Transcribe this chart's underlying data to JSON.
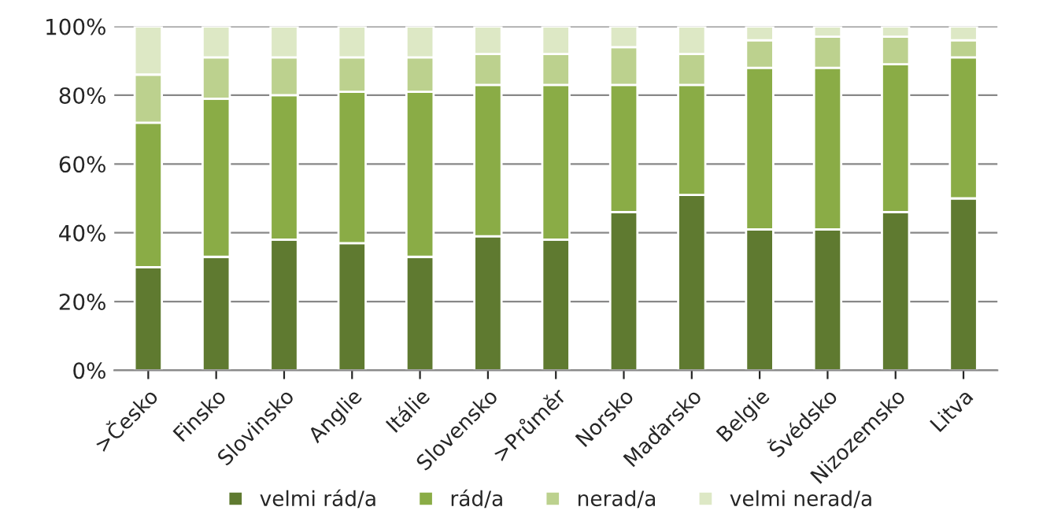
{
  "chart_data": {
    "type": "bar",
    "stacked": true,
    "categories": [
      ">Česko",
      "Finsko",
      "Slovinsko",
      "Anglie",
      "Itálie",
      "Slovensko",
      ">Průměr",
      "Norsko",
      "Maďarsko",
      "Belgie",
      "Švédsko",
      "Nizozemsko",
      "Litva"
    ],
    "series": [
      {
        "name": "velmi rád/a",
        "color": "#5f7a30",
        "values": [
          30,
          33,
          38,
          37,
          33,
          39,
          38,
          46,
          51,
          41,
          41,
          46,
          50
        ]
      },
      {
        "name": "rád/a",
        "color": "#8aac46",
        "values": [
          42,
          46,
          42,
          44,
          48,
          44,
          45,
          37,
          32,
          47,
          47,
          43,
          41
        ]
      },
      {
        "name": "nerad/a",
        "color": "#bcd18e",
        "values": [
          14,
          12,
          11,
          10,
          10,
          9,
          9,
          11,
          9,
          8,
          9,
          8,
          5
        ]
      },
      {
        "name": "velmi nerad/a",
        "color": "#dde8c5",
        "values": [
          14,
          9,
          9,
          9,
          9,
          8,
          8,
          6,
          8,
          4,
          3,
          3,
          4
        ]
      }
    ],
    "ylim": [
      0,
      100
    ],
    "yticks": [
      {
        "value": 0,
        "label": "0%"
      },
      {
        "value": 20,
        "label": "20%"
      },
      {
        "value": 40,
        "label": "40%"
      },
      {
        "value": 60,
        "label": "60%"
      },
      {
        "value": 80,
        "label": "80%"
      },
      {
        "value": 100,
        "label": "100%"
      }
    ],
    "grid": "y",
    "legend": "bottom"
  }
}
